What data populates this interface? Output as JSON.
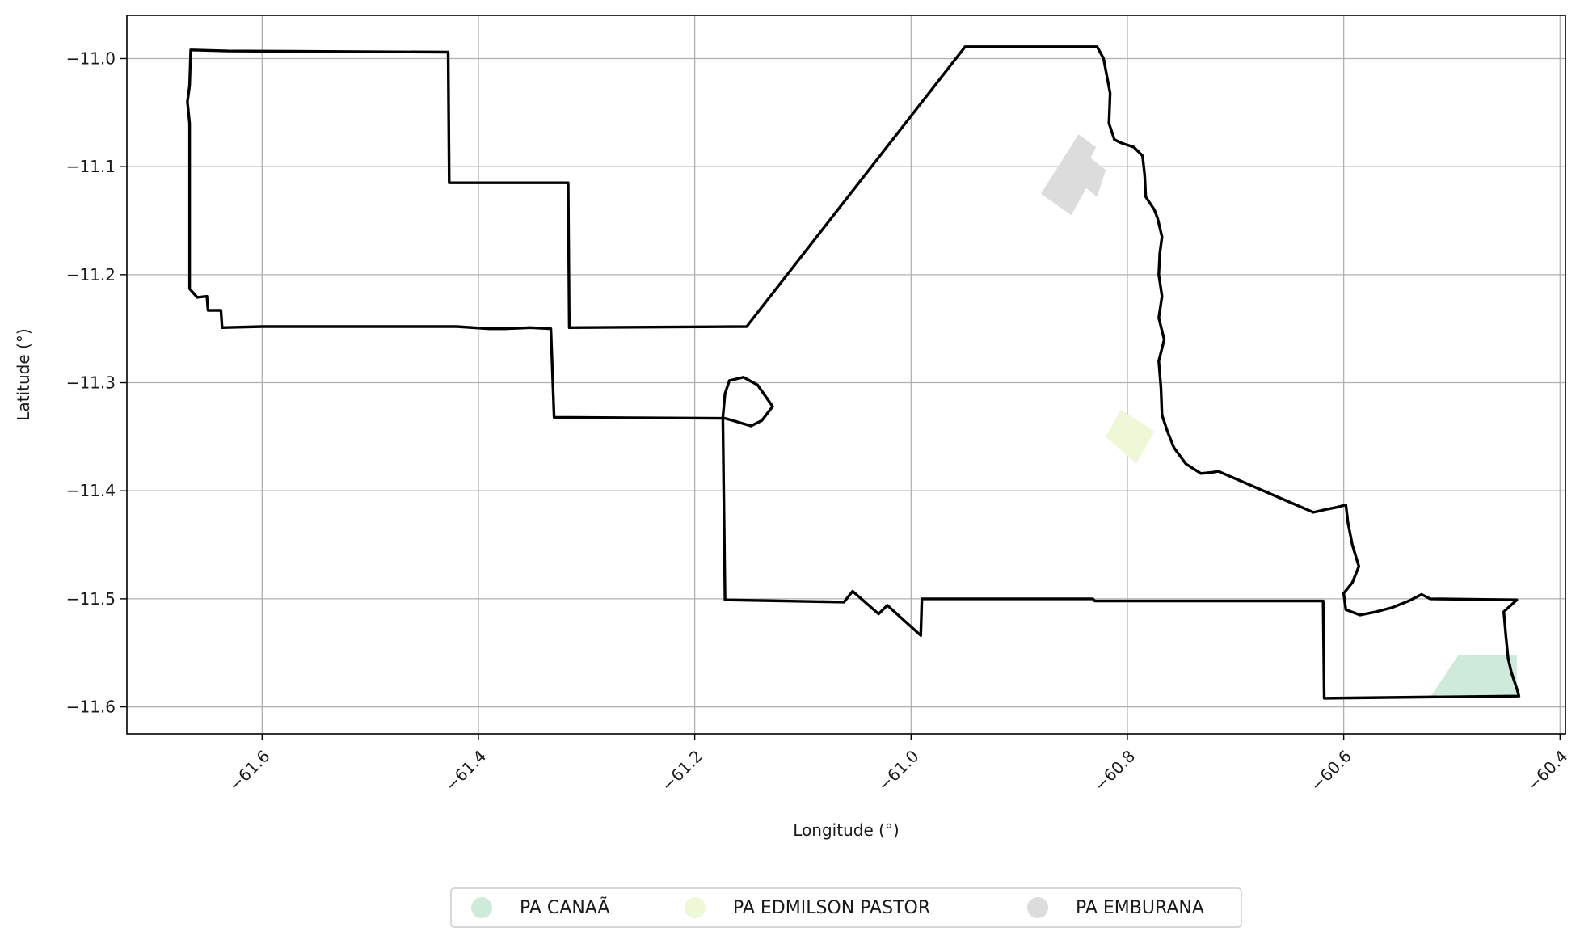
{
  "chart_data": {
    "type": "map",
    "xlabel": "Longitude (°)",
    "ylabel": "Latitude (°)",
    "xlim": [
      -61.725,
      -60.395
    ],
    "ylim": [
      -11.625,
      -10.96
    ],
    "xticks": [
      -61.6,
      -61.4,
      -61.2,
      -61.0,
      -60.8,
      -60.6,
      -60.4
    ],
    "xtick_labels": [
      "−61.6",
      "−61.4",
      "−61.2",
      "−61.0",
      "−60.8",
      "−60.6",
      "−60.4"
    ],
    "yticks": [
      -11.0,
      -11.1,
      -11.2,
      -11.3,
      -11.4,
      -11.5,
      -11.6
    ],
    "ytick_labels": [
      "−11.0",
      "−11.1",
      "−11.2",
      "−11.3",
      "−11.4",
      "−11.5",
      "−11.6"
    ],
    "grid": true,
    "xtick_rotation": "45 degrees",
    "legend_position": "bottom-center",
    "boundary_color": "#000000",
    "outer_boundary": [
      [
        -61.666,
        -10.992
      ],
      [
        -61.632,
        -10.993
      ],
      [
        -61.428,
        -10.994
      ],
      [
        -61.427,
        -11.115
      ],
      [
        -61.317,
        -11.115
      ],
      [
        -61.316,
        -11.249
      ],
      [
        -61.152,
        -11.248
      ],
      [
        -60.95,
        -10.989
      ],
      [
        -60.828,
        -10.989
      ],
      [
        -60.822,
        -11.0
      ],
      [
        -60.816,
        -11.032
      ],
      [
        -60.817,
        -11.06
      ],
      [
        -60.812,
        -11.075
      ],
      [
        -60.806,
        -11.078
      ],
      [
        -60.794,
        -11.082
      ],
      [
        -60.786,
        -11.09
      ],
      [
        -60.784,
        -11.108
      ],
      [
        -60.783,
        -11.128
      ],
      [
        -60.775,
        -11.14
      ],
      [
        -60.772,
        -11.148
      ],
      [
        -60.768,
        -11.165
      ],
      [
        -60.77,
        -11.18
      ],
      [
        -60.771,
        -11.2
      ],
      [
        -60.768,
        -11.22
      ],
      [
        -60.771,
        -11.24
      ],
      [
        -60.766,
        -11.26
      ],
      [
        -60.771,
        -11.28
      ],
      [
        -60.769,
        -11.305
      ],
      [
        -60.768,
        -11.33
      ],
      [
        -60.763,
        -11.345
      ],
      [
        -60.757,
        -11.36
      ],
      [
        -60.746,
        -11.375
      ],
      [
        -60.732,
        -11.384
      ],
      [
        -60.722,
        -11.383
      ],
      [
        -60.716,
        -11.382
      ],
      [
        -60.628,
        -11.42
      ],
      [
        -60.615,
        -11.417
      ],
      [
        -60.605,
        -11.415
      ],
      [
        -60.598,
        -11.413
      ],
      [
        -60.596,
        -11.43
      ],
      [
        -60.592,
        -11.45
      ],
      [
        -60.586,
        -11.47
      ],
      [
        -60.592,
        -11.485
      ],
      [
        -60.6,
        -11.495
      ],
      [
        -60.598,
        -11.51
      ],
      [
        -60.585,
        -11.515
      ],
      [
        -60.57,
        -11.512
      ],
      [
        -60.555,
        -11.508
      ],
      [
        -60.54,
        -11.502
      ],
      [
        -60.528,
        -11.496
      ],
      [
        -60.52,
        -11.5
      ],
      [
        -60.44,
        -11.501
      ],
      [
        -60.452,
        -11.512
      ],
      [
        -60.45,
        -11.535
      ],
      [
        -60.448,
        -11.555
      ],
      [
        -60.445,
        -11.568
      ],
      [
        -60.44,
        -11.583
      ],
      [
        -60.438,
        -11.59
      ],
      [
        -60.53,
        -11.591
      ],
      [
        -60.618,
        -11.592
      ],
      [
        -60.619,
        -11.502
      ],
      [
        -60.83,
        -11.502
      ],
      [
        -60.832,
        -11.5
      ],
      [
        -60.99,
        -11.5
      ],
      [
        -60.991,
        -11.534
      ],
      [
        -61.022,
        -11.506
      ],
      [
        -61.03,
        -11.514
      ],
      [
        -61.054,
        -11.493
      ],
      [
        -61.062,
        -11.503
      ],
      [
        -61.172,
        -11.501
      ],
      [
        -61.174,
        -11.332
      ],
      [
        -61.172,
        -11.31
      ],
      [
        -61.168,
        -11.298
      ],
      [
        -61.155,
        -11.295
      ],
      [
        -61.142,
        -11.302
      ],
      [
        -61.128,
        -11.322
      ],
      [
        -61.138,
        -11.335
      ],
      [
        -61.148,
        -11.34
      ],
      [
        -61.165,
        -11.335
      ],
      [
        -61.172,
        -11.333
      ],
      [
        -61.33,
        -11.332
      ],
      [
        -61.333,
        -11.25
      ],
      [
        -61.352,
        -11.249
      ],
      [
        -61.375,
        -11.25
      ],
      [
        -61.39,
        -11.25
      ],
      [
        -61.42,
        -11.248
      ],
      [
        -61.5,
        -11.248
      ],
      [
        -61.6,
        -11.248
      ],
      [
        -61.637,
        -11.249
      ],
      [
        -61.638,
        -11.233
      ],
      [
        -61.65,
        -11.233
      ],
      [
        -61.651,
        -11.22
      ],
      [
        -61.66,
        -11.221
      ],
      [
        -61.667,
        -11.213
      ],
      [
        -61.667,
        -11.06
      ],
      [
        -61.669,
        -11.04
      ],
      [
        -61.667,
        -11.025
      ],
      [
        -61.666,
        -10.992
      ]
    ],
    "settlements": [
      {
        "name": "PA CANAÃ",
        "color": "#cdeadb",
        "polygon": [
          [
            -60.52,
            -11.591
          ],
          [
            -60.494,
            -11.552
          ],
          [
            -60.44,
            -11.552
          ],
          [
            -60.44,
            -11.591
          ]
        ]
      },
      {
        "name": "PA EDMILSON PASTOR",
        "color": "#eef7d6",
        "polygon": [
          [
            -60.82,
            -11.35
          ],
          [
            -60.806,
            -11.325
          ],
          [
            -60.775,
            -11.345
          ],
          [
            -60.792,
            -11.375
          ]
        ]
      },
      {
        "name": "PA EMBURANA",
        "color": "#dcdcdc",
        "polygon": [
          [
            -60.88,
            -11.125
          ],
          [
            -60.845,
            -11.07
          ],
          [
            -60.829,
            -11.082
          ],
          [
            -60.834,
            -11.092
          ],
          [
            -60.82,
            -11.103
          ],
          [
            -60.828,
            -11.128
          ],
          [
            -60.838,
            -11.12
          ],
          [
            -60.852,
            -11.145
          ]
        ]
      }
    ]
  }
}
